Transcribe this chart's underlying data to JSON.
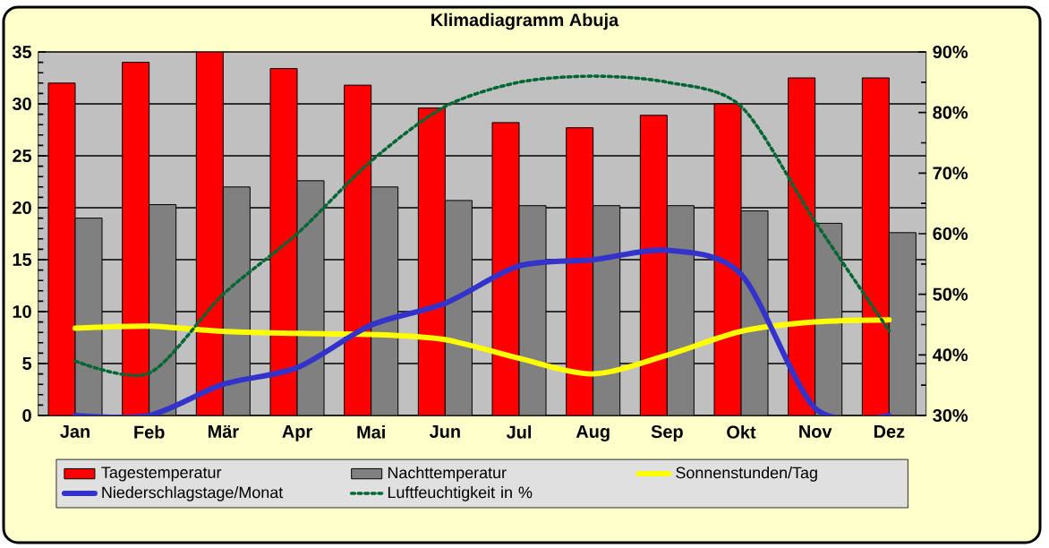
{
  "chart_data": {
    "type": "bar",
    "title": "Klimadiagramm Abuja",
    "categories": [
      "Jan",
      "Feb",
      "Mär",
      "Apr",
      "Mai",
      "Jun",
      "Jul",
      "Aug",
      "Sep",
      "Okt",
      "Nov",
      "Dez"
    ],
    "series": [
      {
        "name": "Tagestemperatur",
        "color": "#ff0000",
        "values": [
          32,
          34,
          35,
          33.4,
          31.8,
          29.6,
          28.2,
          27.7,
          28.9,
          30,
          32.5,
          32.5
        ]
      },
      {
        "name": "Nachttemperatur",
        "color": "#808080",
        "values": [
          19,
          20.3,
          22,
          22.6,
          22,
          20.7,
          20.2,
          20.2,
          20.2,
          19.7,
          18.5,
          17.6
        ]
      },
      {
        "name": "Sonnenstunden/Tag",
        "type": "line",
        "color": "#ffff00",
        "line_style": "solid",
        "values": [
          8.4,
          8.6,
          8.1,
          7.9,
          7.8,
          7.3,
          5.5,
          4.0,
          5.8,
          8.1,
          9.0,
          9.2
        ]
      },
      {
        "name": "Niederschlagstage/Monat",
        "type": "line",
        "color": "#3333cc",
        "line_style": "solid",
        "values": [
          0,
          0,
          3,
          4.6,
          8.7,
          10.8,
          14.4,
          15,
          15.9,
          13.6,
          0.7,
          0
        ]
      },
      {
        "name": "Luftfeuchtigkeit in %",
        "type": "line",
        "color": "#006633",
        "line_style": "dotted",
        "axis": "y2",
        "values": [
          39,
          37,
          50,
          60,
          72,
          81,
          85,
          86,
          85,
          81,
          62,
          44
        ]
      }
    ],
    "ylim": [
      0,
      35
    ],
    "yticks": [
      0,
      5,
      10,
      15,
      20,
      25,
      30,
      35
    ],
    "y2lim": [
      30,
      90
    ],
    "y2ticks": [
      {
        "value": 30,
        "label": "30%"
      },
      {
        "value": 40,
        "label": "40%"
      },
      {
        "value": 50,
        "label": "50%"
      },
      {
        "value": 60,
        "label": "60%"
      },
      {
        "value": 70,
        "label": "70%"
      },
      {
        "value": 80,
        "label": "80%"
      },
      {
        "value": 90,
        "label": "90%"
      }
    ],
    "grid": "y",
    "legend": "bottom"
  }
}
